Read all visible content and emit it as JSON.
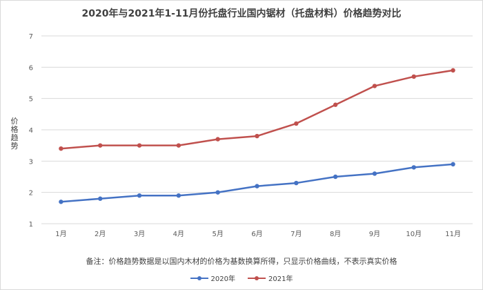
{
  "chart_data": {
    "type": "line",
    "title": "2020年与2021年1-11月份托盘行业国内锯材（托盘材料）价格趋势对比",
    "ylabel": "价格趋势",
    "xlabel": "",
    "categories": [
      "1月",
      "2月",
      "3月",
      "4月",
      "5月",
      "6月",
      "7月",
      "8月",
      "9月",
      "10月",
      "11月"
    ],
    "series": [
      {
        "name": "2020年",
        "color": "#4472c4",
        "values": [
          1.7,
          1.8,
          1.9,
          1.9,
          2.0,
          2.2,
          2.3,
          2.5,
          2.6,
          2.8,
          2.9
        ]
      },
      {
        "name": "2021年",
        "color": "#c0504d",
        "values": [
          3.4,
          3.5,
          3.5,
          3.5,
          3.7,
          3.8,
          4.2,
          4.8,
          5.4,
          5.7,
          5.9
        ]
      }
    ],
    "ylim": [
      1,
      7
    ],
    "yticks": [
      1,
      2,
      3,
      4,
      5,
      6,
      7
    ],
    "grid": true,
    "legend_position": "bottom",
    "note": "备注：价格趋势数据是以国内木材的价格为基数换算所得，只显示价格曲线，不表示真实价格"
  }
}
